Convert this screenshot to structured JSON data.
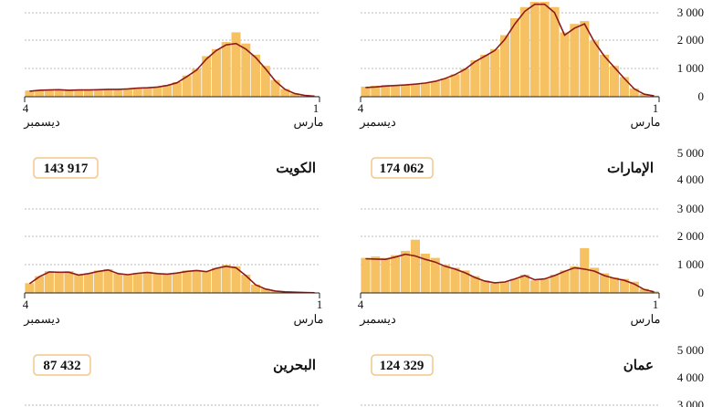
{
  "colors": {
    "bar": "#f6c162",
    "line": "#8e1b1b",
    "grid": "#bdbdbd",
    "box": "#f3c78a",
    "axis": "#222222"
  },
  "y_axis_ticks": [
    "0",
    "1 000",
    "2 000",
    "3 000",
    "4 000",
    "5 000"
  ],
  "chart_data": [
    {
      "type": "bar",
      "country": "الإمارات",
      "total": "174 062",
      "x_start": "4",
      "x_start_month": "ديسمبر",
      "x_end": "1",
      "x_end_month": "مارس",
      "ylim": [
        0,
        5000
      ],
      "bars": [
        360,
        390,
        420,
        410,
        440,
        460,
        500,
        560,
        650,
        800,
        1000,
        1300,
        1500,
        1700,
        2200,
        2800,
        3200,
        3500,
        3400,
        3200,
        2300,
        2600,
        2700,
        2000,
        1500,
        1100,
        700,
        300,
        100,
        40
      ],
      "trend": [
        330,
        350,
        380,
        400,
        420,
        450,
        490,
        550,
        650,
        790,
        980,
        1250,
        1450,
        1650,
        2050,
        2600,
        3050,
        3300,
        3300,
        3000,
        2200,
        2450,
        2600,
        1950,
        1450,
        1050,
        650,
        280,
        90,
        30
      ]
    },
    {
      "type": "bar",
      "country": "الكويت",
      "total": "143 917",
      "x_start": "4",
      "x_start_month": "ديسمبر",
      "x_end": "1",
      "x_end_month": "مارس",
      "ylim": [
        0,
        5000
      ],
      "bars": [
        220,
        240,
        250,
        260,
        230,
        250,
        240,
        260,
        280,
        270,
        290,
        320,
        330,
        360,
        420,
        520,
        760,
        1000,
        1450,
        1700,
        1950,
        2300,
        1900,
        1500,
        1100,
        600,
        280,
        120,
        60,
        30
      ],
      "trend": [
        200,
        230,
        240,
        250,
        230,
        240,
        240,
        250,
        265,
        265,
        280,
        305,
        320,
        345,
        400,
        500,
        720,
        950,
        1350,
        1650,
        1850,
        1900,
        1700,
        1400,
        1000,
        560,
        260,
        110,
        50,
        20
      ]
    },
    {
      "type": "bar",
      "country": "عمان",
      "total": "124 329",
      "x_start": "4",
      "x_start_month": "ديسمبر",
      "x_end": "1",
      "x_end_month": "مارس",
      "ylim": [
        0,
        5000
      ],
      "bars": [
        1250,
        1300,
        1250,
        1350,
        1500,
        1900,
        1400,
        1250,
        1000,
        900,
        800,
        600,
        450,
        350,
        400,
        500,
        650,
        450,
        500,
        650,
        800,
        950,
        1600,
        900,
        700,
        550,
        500,
        400,
        150,
        60
      ],
      "trend": [
        1220,
        1210,
        1200,
        1280,
        1380,
        1320,
        1200,
        1100,
        950,
        850,
        720,
        550,
        420,
        360,
        390,
        500,
        620,
        470,
        500,
        620,
        770,
        900,
        850,
        780,
        620,
        520,
        450,
        320,
        120,
        40
      ]
    },
    {
      "type": "bar",
      "country": "البحرين",
      "total": "87 432",
      "x_start": "4",
      "x_start_month": "ديسمبر",
      "x_end": "1",
      "x_end_month": "مارس",
      "ylim": [
        0,
        5000
      ],
      "bars": [
        350,
        600,
        780,
        750,
        780,
        650,
        700,
        800,
        850,
        700,
        650,
        720,
        760,
        700,
        680,
        720,
        800,
        820,
        780,
        900,
        1000,
        950,
        650,
        300,
        150,
        80,
        50,
        30,
        20,
        10
      ],
      "trend": [
        330,
        580,
        750,
        740,
        740,
        640,
        690,
        770,
        820,
        690,
        650,
        700,
        730,
        690,
        670,
        710,
        770,
        800,
        760,
        880,
        950,
        900,
        620,
        290,
        140,
        70,
        40,
        25,
        15,
        8
      ]
    }
  ]
}
